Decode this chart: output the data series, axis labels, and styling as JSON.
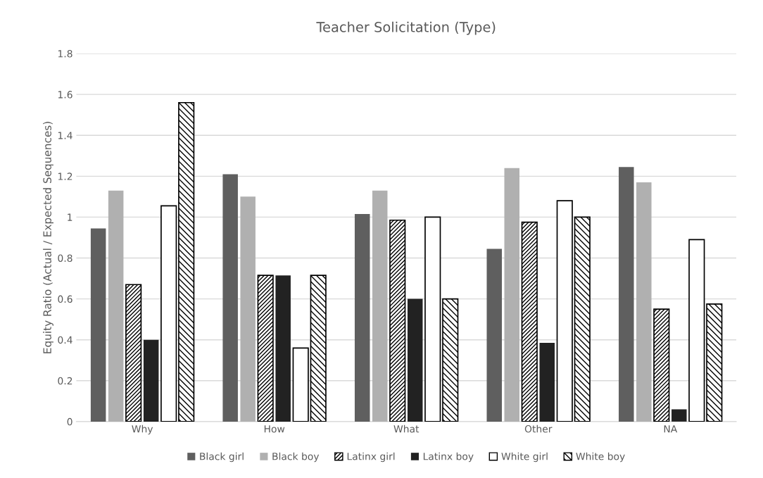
{
  "chart_data": {
    "type": "bar",
    "title": "Teacher Solicitation (Type)",
    "ylabel": "Equity Ratio (Actual / Expected Sequences)",
    "categories": [
      "Why",
      "How",
      "What",
      "Other",
      "NA"
    ],
    "series": [
      {
        "name": "Black girl",
        "color": "#5f5f5f",
        "values": [
          0.945,
          1.21,
          1.015,
          0.845,
          1.245
        ]
      },
      {
        "name": "Black boy",
        "color": "#b0b0b0",
        "values": [
          1.13,
          1.1,
          1.13,
          1.24,
          1.17
        ]
      },
      {
        "name": "Latinx girl",
        "color": "#000000",
        "values": [
          0.67,
          0.715,
          0.985,
          0.975,
          0.55
        ]
      },
      {
        "name": "Latinx boy",
        "color": "#222222",
        "values": [
          0.4,
          0.715,
          0.6,
          0.385,
          0.06
        ]
      },
      {
        "name": "White girl",
        "color": "#ffffff",
        "values": [
          1.055,
          0.36,
          1.0,
          1.08,
          0.89
        ]
      },
      {
        "name": "White boy",
        "color": "#000000",
        "values": [
          1.56,
          0.715,
          0.6,
          1.0,
          0.575
        ]
      }
    ],
    "ylim": [
      0,
      1.8
    ],
    "yticks": [
      0,
      0.2,
      0.4,
      0.6,
      0.8,
      1,
      1.2,
      1.4,
      1.6,
      1.8
    ],
    "grid": "y",
    "legend": "bottom"
  }
}
